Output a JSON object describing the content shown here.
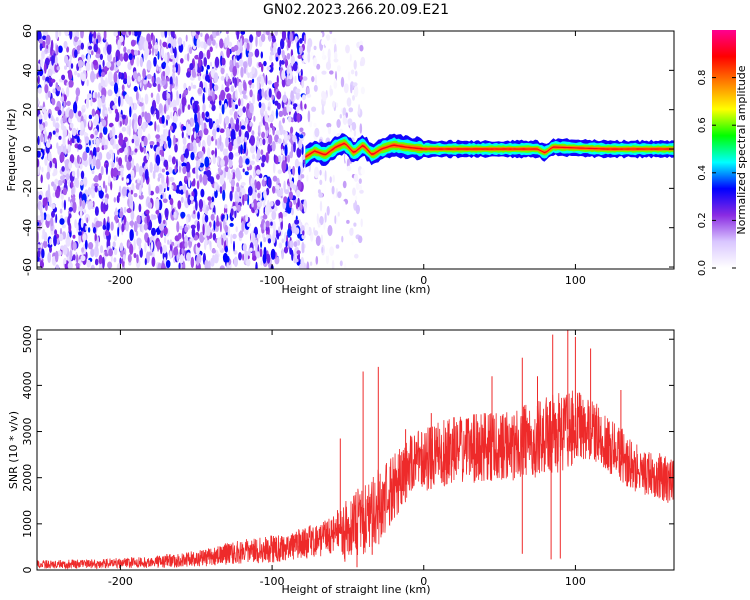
{
  "figure": {
    "title": "GN02.2023.266.20.09.E21"
  },
  "chart_data": [
    {
      "type": "heatmap",
      "xlabel": "Height of straight line (km)",
      "ylabel": "Frequency (Hz)",
      "xlim": [
        -255,
        165
      ],
      "ylim": [
        -61,
        60
      ],
      "x_ticks": [
        -200,
        -100,
        0,
        100
      ],
      "y_ticks": [
        -60,
        -40,
        -20,
        0,
        20,
        40,
        60
      ],
      "grid": false,
      "colorbar": {
        "label": "Normalized spectral amplitude",
        "range": [
          0.0,
          1.0
        ],
        "ticks": [
          0.0,
          0.2,
          0.4,
          0.6,
          0.8
        ],
        "colormap": [
          "#ffffff",
          "#d9c6ff",
          "#8a2be2",
          "#0000ff",
          "#00ffff",
          "#00ff00",
          "#ffff00",
          "#ff8000",
          "#ff0000",
          "#ff0090"
        ]
      },
      "regions": [
        {
          "x_range": [
            -255,
            -78
          ],
          "f_range": [
            -61,
            60
          ],
          "amplitude": [
            0.05,
            0.35
          ],
          "description": "broadband noise"
        },
        {
          "x_range": [
            -78,
            -40
          ],
          "f_range": [
            -61,
            60
          ],
          "amplitude": [
            0.0,
            0.15
          ],
          "description": "sparse noise"
        }
      ],
      "signal_band": {
        "x_range": [
          -78,
          165
        ],
        "center_freq_hz": 0,
        "points": [
          {
            "x": -78,
            "f": -4
          },
          {
            "x": -72,
            "f": -1
          },
          {
            "x": -65,
            "f": -3
          },
          {
            "x": -58,
            "f": 1
          },
          {
            "x": -52,
            "f": 3
          },
          {
            "x": -46,
            "f": -2
          },
          {
            "x": -40,
            "f": 2
          },
          {
            "x": -34,
            "f": -3
          },
          {
            "x": -28,
            "f": 0
          },
          {
            "x": -20,
            "f": 2
          },
          {
            "x": -12,
            "f": 1
          },
          {
            "x": 0,
            "f": 0
          },
          {
            "x": 40,
            "f": 0
          },
          {
            "x": 75,
            "f": 0
          },
          {
            "x": 80,
            "f": -2
          },
          {
            "x": 85,
            "f": 1
          },
          {
            "x": 120,
            "f": 0
          },
          {
            "x": 165,
            "f": 0
          }
        ],
        "peak_amplitude": 0.9
      }
    },
    {
      "type": "line",
      "xlabel": "Height of straight line (km)",
      "ylabel": "SNR (10 * v/v)",
      "xlim": [
        -255,
        165
      ],
      "ylim": [
        0,
        5200
      ],
      "x_ticks": [
        -200,
        -100,
        0,
        100
      ],
      "y_ticks": [
        0,
        1000,
        2000,
        3000,
        4000,
        5000
      ],
      "grid": false,
      "series": [
        {
          "color": "#ee2a2a",
          "envelope": {
            "x": [
              -255,
              -220,
              -180,
              -150,
              -120,
              -100,
              -80,
              -60,
              -55,
              -50,
              -40,
              -30,
              -20,
              -10,
              0,
              20,
              40,
              60,
              80,
              90,
              100,
              110,
              120,
              140,
              165
            ],
            "base": [
              120,
              130,
              170,
              240,
              400,
              450,
              580,
              750,
              780,
              900,
              1100,
              1300,
              1800,
              2200,
              2400,
              2600,
              2650,
              2700,
              2900,
              3000,
              3100,
              3050,
              2800,
              2200,
              1900
            ],
            "spread": [
              90,
              100,
              130,
              180,
              260,
              300,
              350,
              420,
              600,
              700,
              800,
              900,
              700,
              700,
              700,
              750,
              750,
              800,
              850,
              900,
              800,
              700,
              650,
              550,
              500
            ]
          },
          "peaks": [
            {
              "x": -55,
              "y": 2850
            },
            {
              "x": -40,
              "y": 4300
            },
            {
              "x": -30,
              "y": 4400
            },
            {
              "x": -12,
              "y": 3050
            },
            {
              "x": 5,
              "y": 3400
            },
            {
              "x": 45,
              "y": 4200
            },
            {
              "x": 65,
              "y": 4600
            },
            {
              "x": 75,
              "y": 4200
            },
            {
              "x": 85,
              "y": 5100
            },
            {
              "x": 95,
              "y": 5200
            },
            {
              "x": 100,
              "y": 5050
            },
            {
              "x": 110,
              "y": 4800
            },
            {
              "x": 130,
              "y": 3900
            }
          ],
          "dips": [
            {
              "x": -52,
              "y": 180
            },
            {
              "x": -44,
              "y": 60
            },
            {
              "x": -34,
              "y": 330
            },
            {
              "x": 65,
              "y": 350
            },
            {
              "x": 84,
              "y": 230
            },
            {
              "x": 90,
              "y": 250
            },
            {
              "x": 165,
              "y": 1000
            }
          ]
        }
      ]
    }
  ]
}
